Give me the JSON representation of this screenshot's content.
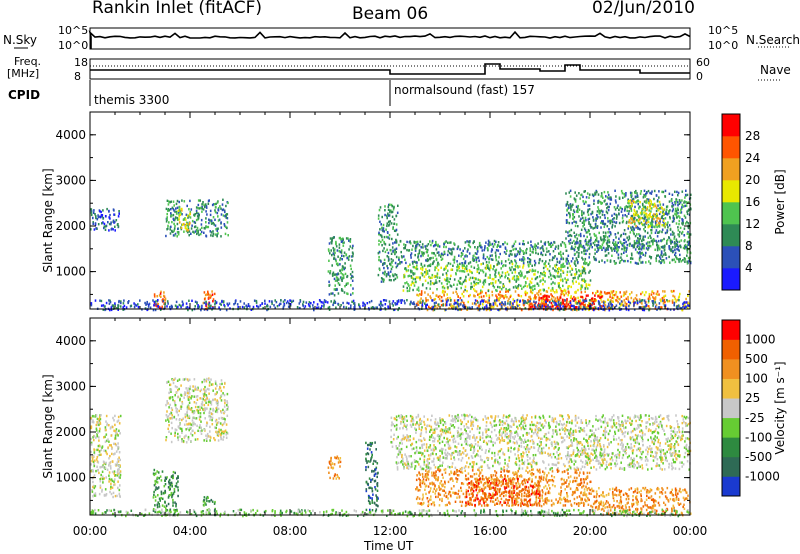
{
  "header": {
    "station": "Rankin Inlet (fitACF)",
    "beam": "Beam 06",
    "date": "02/Jun/2010"
  },
  "top_panels": {
    "nsky_label": "N.Sky",
    "nsearch_label": "N.Search",
    "noise_ticks": [
      "10^5",
      "10^0"
    ],
    "freq_label": "Freq.",
    "freq_unit": "[MHz]",
    "freq_ticks": [
      "18",
      "8"
    ],
    "nave_label": "Nave",
    "nave_ticks": [
      "60",
      "0"
    ],
    "cpid_label": "CPID",
    "cpid_segments": [
      {
        "name": "themis 3300",
        "start_hour": 0,
        "end_hour": 12
      },
      {
        "name": "normalsound (fast) 157",
        "start_hour": 12,
        "end_hour": 24
      }
    ]
  },
  "chart_data": [
    {
      "type": "heatmap",
      "title": "",
      "ylabel": "Slant Range [km]",
      "xlabel": "",
      "xlim": [
        0,
        24
      ],
      "ylim": [
        180,
        4500
      ],
      "yticks": [
        "1000",
        "2000",
        "3000",
        "4000"
      ],
      "colorbar": {
        "label": "Power [dB]",
        "ticks": [
          "28",
          "24",
          "20",
          "16",
          "12",
          "8",
          "4"
        ],
        "colors": [
          "#1a1aff",
          "#2b50b8",
          "#2e8a55",
          "#4fc44f",
          "#e8e800",
          "#f0a020",
          "#ff5500",
          "#ff0000"
        ]
      },
      "echo_regions": [
        {
          "start_hour": 0.0,
          "end_hour": 1.2,
          "min_km": 1900,
          "max_km": 2400,
          "level": 1
        },
        {
          "start_hour": 3.0,
          "end_hour": 5.5,
          "min_km": 1800,
          "max_km": 2600,
          "level": 2
        },
        {
          "start_hour": 3.5,
          "end_hour": 4.0,
          "min_km": 1900,
          "max_km": 2400,
          "level": 4
        },
        {
          "start_hour": 2.5,
          "end_hour": 3.0,
          "min_km": 200,
          "max_km": 600,
          "level": 6
        },
        {
          "start_hour": 4.5,
          "end_hour": 5.0,
          "min_km": 200,
          "max_km": 600,
          "level": 6
        },
        {
          "start_hour": 9.5,
          "end_hour": 10.5,
          "min_km": 500,
          "max_km": 1800,
          "level": 2
        },
        {
          "start_hour": 11.5,
          "end_hour": 12.3,
          "min_km": 800,
          "max_km": 2500,
          "level": 2
        },
        {
          "start_hour": 12.3,
          "end_hour": 24.0,
          "min_km": 1200,
          "max_km": 1700,
          "level": 2
        },
        {
          "start_hour": 12.5,
          "end_hour": 20.0,
          "min_km": 600,
          "max_km": 1200,
          "level": 3
        },
        {
          "start_hour": 13.0,
          "end_hour": 24.0,
          "min_km": 180,
          "max_km": 600,
          "level": 5
        },
        {
          "start_hour": 17.5,
          "end_hour": 20.5,
          "min_km": 200,
          "max_km": 500,
          "level": 7
        },
        {
          "start_hour": 19.0,
          "end_hour": 24.0,
          "min_km": 1500,
          "max_km": 2800,
          "level": 2
        },
        {
          "start_hour": 21.5,
          "end_hour": 23.0,
          "min_km": 2000,
          "max_km": 2600,
          "level": 4
        },
        {
          "start_hour": 0.0,
          "end_hour": 24.0,
          "min_km": 180,
          "max_km": 400,
          "level": 1
        }
      ]
    },
    {
      "type": "heatmap",
      "title": "",
      "ylabel": "Slant Range [km]",
      "xlabel": "Time UT",
      "xlim": [
        0,
        24
      ],
      "ylim": [
        180,
        4500
      ],
      "xticks": [
        "00:00",
        "04:00",
        "08:00",
        "12:00",
        "16:00",
        "20:00",
        "00:00"
      ],
      "yticks": [
        "1000",
        "2000",
        "3000",
        "4000"
      ],
      "colorbar": {
        "label": "Velocity [m s⁻¹]",
        "ticks": [
          "1000",
          "500",
          "100",
          "25",
          "-25",
          "-100",
          "-500",
          "-1000"
        ],
        "colors": [
          "#1a3ad0",
          "#2e6a55",
          "#2e8a40",
          "#66cc33",
          "#c8c8c8",
          "#f0c040",
          "#f09020",
          "#f06000",
          "#ff0000"
        ]
      },
      "echo_regions": [
        {
          "start_hour": 0.0,
          "end_hour": 1.2,
          "min_km": 600,
          "max_km": 2400,
          "level": 4
        },
        {
          "start_hour": 3.0,
          "end_hour": 5.5,
          "min_km": 1800,
          "max_km": 3200,
          "level": 4
        },
        {
          "start_hour": 2.5,
          "end_hour": 3.5,
          "min_km": 200,
          "max_km": 1200,
          "level": 2
        },
        {
          "start_hour": 4.5,
          "end_hour": 5.0,
          "min_km": 200,
          "max_km": 600,
          "level": 2
        },
        {
          "start_hour": 9.5,
          "end_hour": 10.0,
          "min_km": 1000,
          "max_km": 1500,
          "level": 6
        },
        {
          "start_hour": 11.0,
          "end_hour": 11.5,
          "min_km": 300,
          "max_km": 1800,
          "level": 1
        },
        {
          "start_hour": 12.2,
          "end_hour": 24.0,
          "min_km": 1200,
          "max_km": 1700,
          "level": 4
        },
        {
          "start_hour": 12.0,
          "end_hour": 24.0,
          "min_km": 1700,
          "max_km": 2400,
          "level": 4
        },
        {
          "start_hour": 13.0,
          "end_hour": 20.0,
          "min_km": 400,
          "max_km": 1200,
          "level": 6
        },
        {
          "start_hour": 15.0,
          "end_hour": 18.0,
          "min_km": 400,
          "max_km": 1000,
          "level": 7
        },
        {
          "start_hour": 20.0,
          "end_hour": 24.0,
          "min_km": 200,
          "max_km": 800,
          "level": 6
        },
        {
          "start_hour": 0.0,
          "end_hour": 24.0,
          "min_km": 180,
          "max_km": 320,
          "level": 3
        }
      ]
    }
  ]
}
